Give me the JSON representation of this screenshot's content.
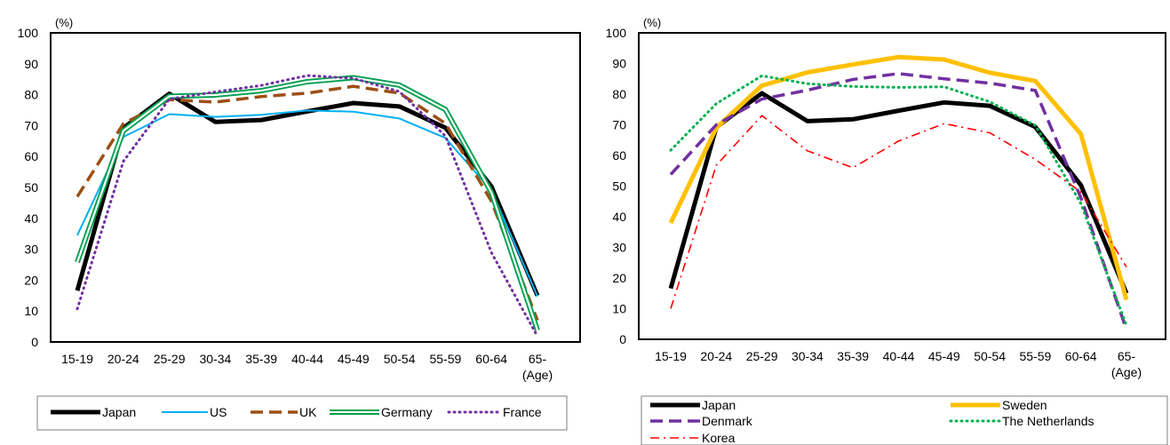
{
  "chart_data": [
    {
      "type": "line",
      "ylabel": "(%)",
      "xunit": "(Age)",
      "ylim": [
        0,
        100
      ],
      "yticks": [
        0,
        10,
        20,
        30,
        40,
        50,
        60,
        70,
        80,
        90,
        100
      ],
      "categories": [
        "15-19",
        "20-24",
        "25-29",
        "30-34",
        "35-39",
        "40-44",
        "45-49",
        "50-54",
        "55-59",
        "60-64",
        "65-"
      ],
      "series": [
        {
          "name": "Japan",
          "color": "#000000",
          "style": "solid-thick",
          "values": [
            16.6,
            69.2,
            80.3,
            71.2,
            71.8,
            74.6,
            77.3,
            76.2,
            69.3,
            50.3,
            15.0
          ]
        },
        {
          "name": "US",
          "color": "#00b0f0",
          "style": "solid",
          "values": [
            34.5,
            66.3,
            73.7,
            72.8,
            73.5,
            74.9,
            74.5,
            72.3,
            66.0,
            49.0,
            14.8
          ]
        },
        {
          "name": "UK",
          "color": "#9c4f14",
          "style": "dash",
          "values": [
            47.0,
            70.6,
            78.4,
            77.6,
            79.4,
            80.5,
            82.7,
            80.5,
            70.7,
            45.5,
            7.0
          ]
        },
        {
          "name": "Germany",
          "color": "#00a050",
          "style": "double",
          "values": [
            25.8,
            68.3,
            79.5,
            79.9,
            81.3,
            84.2,
            85.5,
            83.1,
            75.2,
            48.3,
            3.8
          ]
        },
        {
          "name": "France",
          "color": "#7030a0",
          "style": "dot",
          "values": [
            10.7,
            58.4,
            78.6,
            80.9,
            83.0,
            86.2,
            85.3,
            81.0,
            66.6,
            28.9,
            1.8
          ]
        }
      ]
    },
    {
      "type": "line",
      "ylabel": "(%)",
      "xunit": "(Age)",
      "ylim": [
        0,
        100
      ],
      "yticks": [
        0,
        10,
        20,
        30,
        40,
        50,
        60,
        70,
        80,
        90,
        100
      ],
      "categories": [
        "15-19",
        "20-24",
        "25-29",
        "30-34",
        "35-39",
        "40-44",
        "45-49",
        "50-54",
        "55-59",
        "60-64",
        "65-"
      ],
      "series": [
        {
          "name": "Japan",
          "color": "#000000",
          "style": "solid-thick",
          "values": [
            16.6,
            69.2,
            80.3,
            71.2,
            71.8,
            74.6,
            77.3,
            76.2,
            69.3,
            50.3,
            15.0
          ]
        },
        {
          "name": "Sweden",
          "color": "#ffc000",
          "style": "solid-thick",
          "values": [
            38.0,
            69.0,
            82.8,
            87.1,
            89.7,
            92.1,
            91.3,
            87.0,
            84.3,
            67.0,
            12.9
          ]
        },
        {
          "name": "Denmark",
          "color": "#7030a0",
          "style": "dash",
          "values": [
            53.8,
            70.0,
            78.4,
            81.3,
            84.8,
            86.7,
            85.0,
            83.6,
            81.2,
            46.2,
            3.2
          ]
        },
        {
          "name": "The Netherlands",
          "color": "#00b050",
          "style": "dot",
          "values": [
            61.7,
            76.9,
            86.0,
            83.4,
            82.5,
            82.2,
            82.4,
            77.5,
            69.8,
            44.3,
            4.5
          ]
        },
        {
          "name": "Korea",
          "color": "#ff0000",
          "style": "dashdot",
          "values": [
            10.0,
            56.8,
            73.0,
            61.5,
            56.0,
            64.7,
            70.4,
            67.4,
            58.7,
            48.1,
            23.6
          ]
        }
      ]
    }
  ]
}
